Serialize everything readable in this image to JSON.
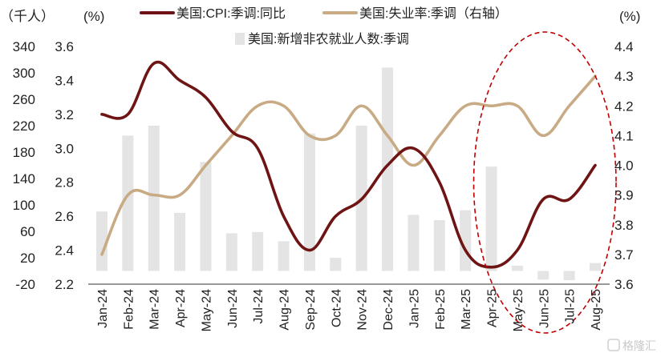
{
  "chart_data": {
    "type": "bar+line",
    "categories": [
      "Jan-24",
      "Feb-24",
      "Mar-24",
      "Apr-24",
      "May-24",
      "Jun-24",
      "Jul-24",
      "Aug-24",
      "Sep-24",
      "Oct-24",
      "Nov-24",
      "Dec-24",
      "Jan-25",
      "Feb-25",
      "Mar-25",
      "Apr-25",
      "May-25",
      "Jun-25",
      "Jul-25",
      "Aug-25"
    ],
    "axes": {
      "left_outer": {
        "unit": "（千人）",
        "ticks": [
          "340",
          "300",
          "260",
          "220",
          "180",
          "140",
          "100",
          "60",
          "20",
          "-20"
        ],
        "range": [
          -20,
          340
        ]
      },
      "left_inner": {
        "unit": "(%)",
        "ticks": [
          "3.6",
          "3.4",
          "3.2",
          "3.0",
          "2.8",
          "2.6",
          "2.4",
          "2.2"
        ],
        "range": [
          2.2,
          3.6
        ]
      },
      "right": {
        "unit": "(%)",
        "ticks": [
          "4.4",
          "4.3",
          "4.2",
          "4.1",
          "4.0",
          "3.9",
          "3.8",
          "3.7",
          "3.6"
        ],
        "range": [
          3.6,
          4.4
        ]
      }
    },
    "series": [
      {
        "name": "美国:CPI:季调:同比",
        "type": "line",
        "axis": "left_inner",
        "color": "#6e1414",
        "values": [
          3.2,
          3.2,
          3.5,
          3.4,
          3.3,
          3.1,
          3.0,
          2.6,
          2.4,
          2.6,
          2.7,
          2.9,
          3.0,
          2.8,
          2.4,
          2.3,
          2.4,
          2.7,
          2.7,
          2.9
        ]
      },
      {
        "name": "美国:失业率:季调（右轴）",
        "type": "line",
        "axis": "right",
        "color": "#c8ab84",
        "values": [
          3.7,
          3.9,
          3.9,
          3.9,
          4.0,
          4.1,
          4.2,
          4.2,
          4.1,
          4.1,
          4.2,
          4.1,
          4.0,
          4.1,
          4.2,
          4.2,
          4.2,
          4.1,
          4.2,
          4.3
        ]
      },
      {
        "name": "美国:新增非农就业人数:季调",
        "type": "bar",
        "axis": "left_outer",
        "color": "#e4e4e4",
        "values": [
          90,
          205,
          220,
          88,
          165,
          57,
          59,
          45,
          208,
          20,
          220,
          308,
          85,
          77,
          92,
          158,
          8,
          -13,
          -14,
          12
        ]
      }
    ],
    "highlight": {
      "shape": "dashed-ellipse",
      "color": "#c00000",
      "covers": [
        "Apr-25",
        "Aug-25"
      ]
    },
    "legend": "top"
  },
  "watermark": "格隆汇"
}
